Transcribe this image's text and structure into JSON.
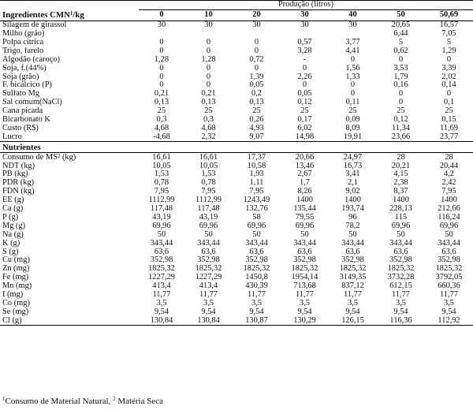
{
  "production_header": "Produção (litros)",
  "ingredients_title": "Ingredientes CMN",
  "ingredients_title_sup": "1",
  "ingredients_title_unit": "/kg",
  "nutrients_title": "Nutrientes",
  "columns": [
    "0",
    "10",
    "20",
    "30",
    "40",
    "50",
    "50,69"
  ],
  "ingredients": [
    {
      "label": "Silagem de girassol",
      "values": [
        "30",
        "30",
        "30",
        "30",
        "30",
        "20,65",
        "16,57"
      ]
    },
    {
      "label": "Milho (grão)",
      "values": [
        "",
        "",
        "",
        "",
        "",
        "6,44",
        "7,05"
      ]
    },
    {
      "label": "Polpa cítrica",
      "values": [
        "0",
        "0",
        "0",
        "0,57",
        "3,77",
        "5",
        "5"
      ]
    },
    {
      "label": "Trigo, farelo",
      "values": [
        "0",
        "0",
        "0",
        "3,28",
        "4,41",
        "0,62",
        "1,29"
      ]
    },
    {
      "label": "Algodão (caroço)",
      "values": [
        "1,28",
        "1,28",
        "0,72",
        "-",
        "0",
        "0",
        "0"
      ]
    },
    {
      "label": "Soja, f.(44%)",
      "values": [
        "0",
        "0",
        "0",
        "0",
        "1,56",
        "3,53",
        "3,39"
      ]
    },
    {
      "label": "Soja (grão)",
      "values": [
        "0",
        "0",
        "1,39",
        "2,26",
        "1,33",
        "1,79",
        "2,02"
      ]
    },
    {
      "label": "F. bicálcico (P)",
      "values": [
        "0",
        "0",
        "0,05",
        "0",
        "0",
        "0,16",
        "0,14"
      ]
    },
    {
      "label": "Sulfato  Mg",
      "values": [
        "0,21",
        "0,21",
        "0,2",
        "0,05",
        "0",
        "0",
        "0"
      ]
    },
    {
      "label": "Sal comum(NaCl)",
      "values": [
        "0,13",
        "0,13",
        "0,13",
        "0,12",
        "0,11",
        "0",
        "0,1"
      ]
    },
    {
      "label": "Cana picada",
      "values": [
        "25",
        "25",
        "25",
        "25",
        "25",
        "25",
        "25"
      ]
    },
    {
      "label": "Bicarbonato K",
      "values": [
        "0,3",
        "0,3",
        "0,26",
        "0,17",
        "0,09",
        "0,12",
        "0,15"
      ]
    },
    {
      "label": "Custo (R$)",
      "values": [
        "4,68",
        "4,68",
        "4,93",
        "6,02",
        "8,09",
        "11,34",
        "11,69"
      ]
    },
    {
      "label": "Lucro",
      "values": [
        "-4,68",
        "2,32",
        "9,07",
        "14,98",
        "19,91",
        "23,66",
        "23,77"
      ]
    }
  ],
  "nutrients": [
    {
      "label": "Consumo de MS",
      "sup": "2",
      "unit": " (kg)",
      "values": [
        "16,61",
        "16,61",
        "17,37",
        "20,66",
        "24,97",
        "28",
        "28"
      ]
    },
    {
      "label": "NDT (kg)",
      "values": [
        "10,05",
        "10,05",
        "10,58",
        "13,46",
        "16,73",
        "20,21",
        "20,44"
      ]
    },
    {
      "label": "PB (kg)",
      "values": [
        "1,53",
        "1,53",
        "1,93",
        "2,67",
        "3,41",
        "4,15",
        "4,2"
      ]
    },
    {
      "label": "PDR (kg)",
      "values": [
        "0,78",
        "0,78",
        "1,11",
        "1,7",
        "2,1",
        "2,38",
        "2,42"
      ]
    },
    {
      "label": "FDN (kg)",
      "values": [
        "7,95",
        "7,95",
        "7,95",
        "8,26",
        "9,02",
        "8,37",
        "7,95"
      ]
    },
    {
      "label": "EE (g)",
      "values": [
        "1112,99",
        "1112,99",
        "1243,49",
        "1400",
        "1400",
        "1400",
        "1400"
      ]
    },
    {
      "label": "Ca (g)",
      "values": [
        "117,48",
        "117,48",
        "132,76",
        "135,44",
        "193,74",
        "228,13",
        "212,66"
      ]
    },
    {
      "label": "P (g)",
      "values": [
        "43,19",
        "43,19",
        "58",
        "79,55",
        "96",
        "115",
        "116,24"
      ]
    },
    {
      "label": "Mg (g)",
      "values": [
        "69,96",
        "69,96",
        "69,96",
        "69,96",
        "78,2",
        "69,96",
        "69,96"
      ]
    },
    {
      "label": "Na (g)",
      "values": [
        "50",
        "50",
        "50",
        "50",
        "50",
        "50",
        "50"
      ]
    },
    {
      "label": "K (g)",
      "values": [
        "343,44",
        "343,44",
        "343,44",
        "343,44",
        "343,44",
        "343,44",
        "343,44"
      ]
    },
    {
      "label": "S (g)",
      "values": [
        "63,6",
        "63,6",
        "63,6",
        "63,6",
        "63,6",
        "63,6",
        "63,6"
      ]
    },
    {
      "label": "Cu (mg)",
      "values": [
        "352,98",
        "352,98",
        "352,98",
        "352,98",
        "352,98",
        "352,98",
        "352,98"
      ]
    },
    {
      "label": "Zn (mg)",
      "values": [
        "1825,32",
        "1825,32",
        "1825,32",
        "1825,32",
        "1825,32",
        "1825,32",
        "1825,32"
      ]
    },
    {
      "label": "Fe (mg)",
      "values": [
        "1227,29",
        "1227,29",
        "1450,8",
        "1954,14",
        "3149,35",
        "3732,28",
        "3792,05"
      ]
    },
    {
      "label": "Mn (mg)",
      "values": [
        "413,4",
        "413,4",
        "430,39",
        "713,68",
        "837,12",
        "612,15",
        "660,36"
      ]
    },
    {
      "label": "I (mg)",
      "values": [
        "11,77",
        "11,77",
        "11,77",
        "11,77",
        "11,77",
        "11,77",
        "11,77"
      ]
    },
    {
      "label": "Co (mg)",
      "values": [
        "3,5",
        "3,5",
        "3,5",
        "3,5",
        "3,5",
        "3,5",
        "3,5"
      ]
    },
    {
      "label": "Se (mg)",
      "values": [
        "9,54",
        "9,54",
        "9,54",
        "9,54",
        "9,54",
        "9,54",
        "9,54"
      ]
    },
    {
      "label": "Cl (g)",
      "values": [
        "130,84",
        "130,84",
        "130,87",
        "130,29",
        "126,15",
        "116,36",
        "112,92"
      ]
    }
  ],
  "footnote": {
    "sup1": "1",
    "text1": "Consumo de Material Natural, ",
    "sup2": "2",
    "text2": " Matéria Seca"
  }
}
